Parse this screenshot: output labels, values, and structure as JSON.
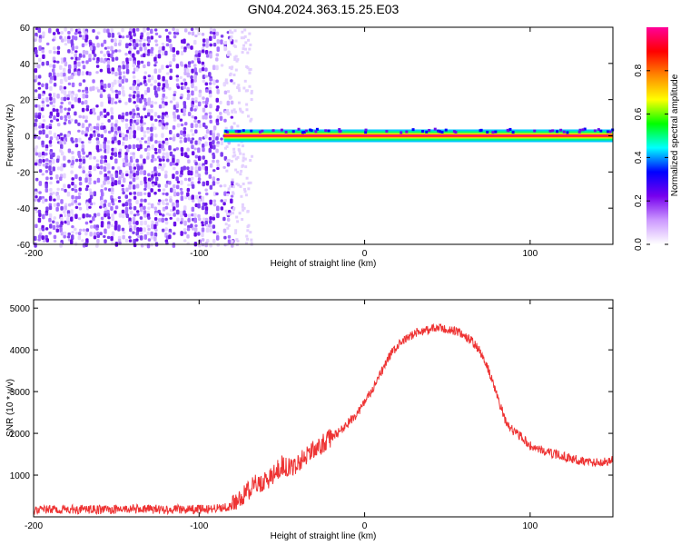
{
  "title": "GN04.2024.363.15.25.E03",
  "chart_data": [
    {
      "type": "heatmap",
      "xlabel": "Height of straight line (km)",
      "ylabel": "Frequency (Hz)",
      "xlim": [
        -200,
        150
      ],
      "ylim": [
        -60,
        60
      ],
      "xticks": [
        -200,
        -100,
        0,
        100
      ],
      "yticks": [
        -60,
        -40,
        -20,
        0,
        20,
        40,
        60
      ],
      "grid": false,
      "colorbar": {
        "label": "Normalized spectral amplitude",
        "range": [
          0,
          1
        ],
        "ticks": [
          "0.0",
          "0.2",
          "0.4",
          "0.6",
          "0.8"
        ],
        "colors": [
          "#ffffff",
          "#cc99ff",
          "#7700ee",
          "#0000ff",
          "#00ffff",
          "#00ff00",
          "#ffff00",
          "#ff8800",
          "#ff0000",
          "#ff0099"
        ]
      },
      "regions": [
        {
          "x": [
            -200,
            -85
          ],
          "y": [
            -60,
            60
          ],
          "amplitude": 0.1,
          "pattern": "noise"
        },
        {
          "x": [
            -85,
            150
          ],
          "y": [
            -2,
            2
          ],
          "amplitude": 1.0,
          "pattern": "carrier line near 0 Hz"
        }
      ]
    },
    {
      "type": "line",
      "xlabel": "Height of straight line (km)",
      "ylabel": "SNR (10 * v/v)",
      "xlim": [
        -200,
        150
      ],
      "ylim": [
        0,
        5200
      ],
      "xticks": [
        -200,
        -100,
        0,
        100
      ],
      "yticks": [
        1000,
        2000,
        3000,
        4000,
        5000
      ],
      "grid": false,
      "series": [
        {
          "color": "#ee3333",
          "x": [
            -200,
            -180,
            -160,
            -140,
            -120,
            -100,
            -90,
            -80,
            -75,
            -70,
            -65,
            -60,
            -55,
            -50,
            -45,
            -40,
            -35,
            -30,
            -25,
            -20,
            -15,
            -10,
            -5,
            0,
            5,
            10,
            15,
            20,
            25,
            30,
            35,
            40,
            45,
            50,
            55,
            60,
            65,
            70,
            75,
            80,
            85,
            90,
            95,
            100,
            110,
            120,
            130,
            140,
            150
          ],
          "y": [
            170,
            180,
            170,
            190,
            180,
            180,
            200,
            260,
            450,
            650,
            800,
            850,
            1000,
            1250,
            1150,
            1300,
            1500,
            1600,
            1750,
            1900,
            2050,
            2250,
            2450,
            2750,
            3050,
            3450,
            3850,
            4100,
            4250,
            4400,
            4450,
            4500,
            4520,
            4480,
            4450,
            4350,
            4200,
            3950,
            3500,
            2900,
            2300,
            2050,
            1900,
            1700,
            1550,
            1450,
            1350,
            1300,
            1350
          ],
          "noise": 220
        }
      ]
    }
  ]
}
